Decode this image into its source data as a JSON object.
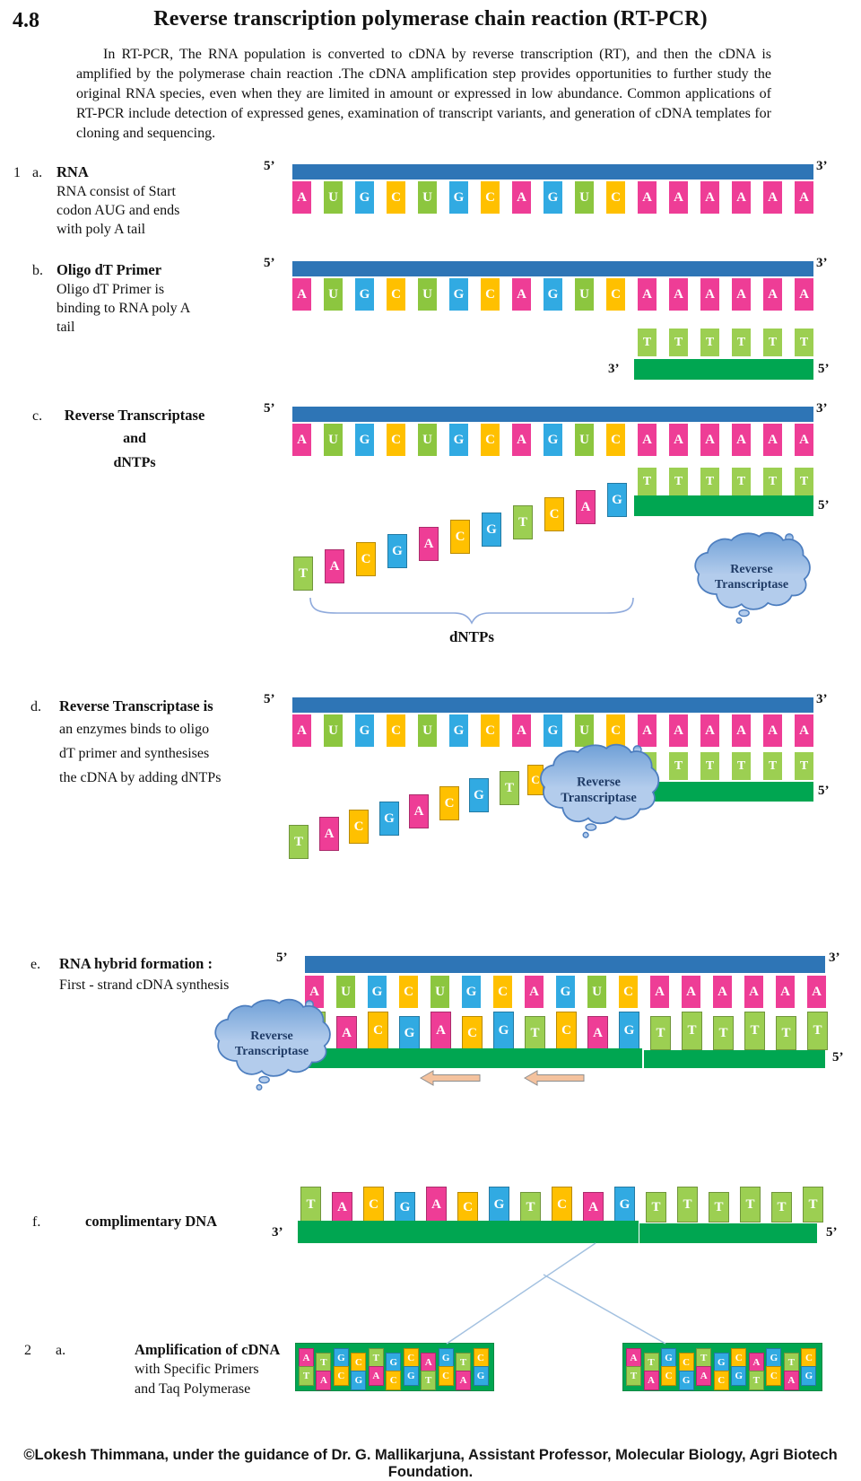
{
  "title": {
    "number": "4.8",
    "text": "Reverse transcription polymerase chain reaction (RT-PCR)"
  },
  "intro": "In RT-PCR,  The RNA population is converted to cDNA by reverse transcription (RT), and then the cDNA is amplified by the polymerase chain reaction .The cDNA amplification step provides opportunities to further study the original RNA species, even when they are limited in amount or expressed in low abundance. Common applications of RT-PCR include detection of  expressed genes, examination of transcript variants, and generation of cDNA templates for cloning and sequencing.",
  "steps": [
    {
      "prefix": "1",
      "letter": "a.",
      "title": "RNA",
      "desc": [
        "RNA consist of Start",
        "codon AUG and ends",
        "with poly A tail"
      ]
    },
    {
      "prefix": "",
      "letter": "b.",
      "title": "Oligo dT Primer",
      "desc": [
        "Oligo dT Primer is",
        "binding to RNA poly A",
        "tail"
      ]
    },
    {
      "prefix": "",
      "letter": "c.",
      "title": "Reverse Transcriptase",
      "desc": [
        "and",
        "dNTPs"
      ]
    },
    {
      "prefix": "",
      "letter": "d.",
      "title": "Reverse Transcriptase is",
      "desc": [
        "an enzymes binds to oligo",
        "dT primer and synthesises",
        "the cDNA by adding dNTPs"
      ]
    },
    {
      "prefix": "",
      "letter": "e.",
      "title": "RNA hybrid formation :",
      "desc": [
        "First - strand cDNA synthesis"
      ]
    },
    {
      "prefix": "",
      "letter": "f.",
      "title": "complimentary DNA",
      "desc": []
    },
    {
      "prefix": "2",
      "letter": "a.",
      "title": "Amplification of cDNA",
      "desc": [
        "with Specific Primers",
        "and Taq Polymerase"
      ]
    }
  ],
  "labels": {
    "five_prime": "5’",
    "three_prime": "3’",
    "dntps": "dNTPs",
    "enzyme_line1": "Reverse",
    "enzyme_line2": "Transcriptase"
  },
  "sequences": {
    "rna": "AUGCUGCAGUCAAAAAA",
    "oligo_dt": "TTTTTT",
    "dntps_c": "TACGACGTCAG",
    "dntps_d": "TACGACGT",
    "dntps_d_partial": "C",
    "cdna": "TACGACGTCAGTTTTTT",
    "amp_top": "ATGCTGCAGTC",
    "amp_bottom": "TACGACGTCAG"
  },
  "colors": {
    "A": "#EE3D96",
    "U": "#8CC63F",
    "G": "#31AAE2",
    "C": "#FFC000",
    "T": "#9CCF52",
    "rna_backbone": "#2E75B6",
    "cdna_backbone": "#00A651",
    "cloud_light": "#B3CCEC",
    "cloud_dark": "#6FA0D7",
    "cloud_outline": "#4D7EBF",
    "cloud_text": "#1F3B66",
    "arrow_fill": "#F4C29E",
    "arrow_outline": "#8E8E8E",
    "connector": "#A3C1E0",
    "brace": "#8FAADC"
  },
  "footer": "©Lokesh Thimmana, under the guidance of Dr. G. Mallikarjuna, Assistant Professor,  Molecular Biology,  Agri Biotech Foundation."
}
